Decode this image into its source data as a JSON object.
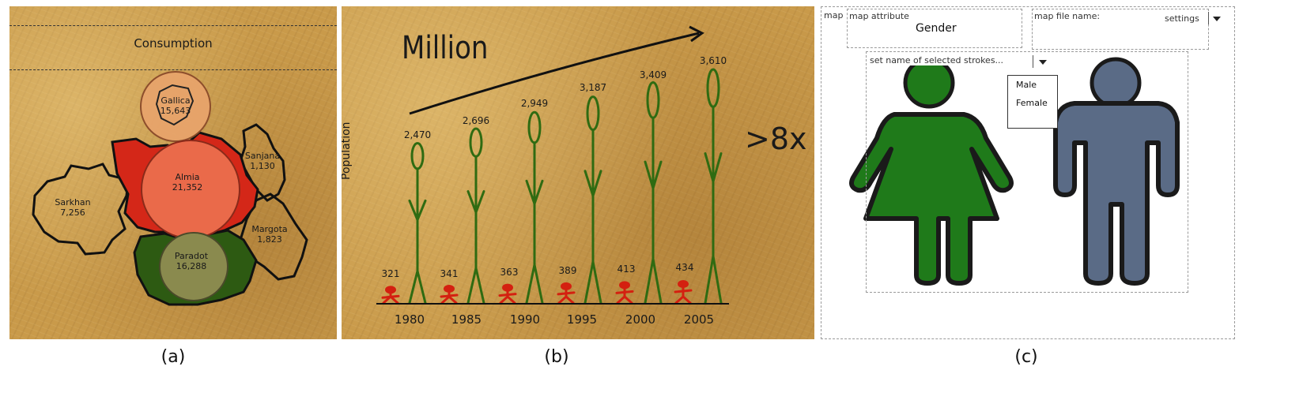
{
  "panel_a": {
    "title": "Consumption",
    "regions": [
      {
        "name": "Gallica",
        "value": "15,643"
      },
      {
        "name": "Almia",
        "value": "21,352"
      },
      {
        "name": "Paradot",
        "value": "16,288"
      },
      {
        "name": "Sarkhan",
        "value": "7,256"
      },
      {
        "name": "Sanjana",
        "value": "1,130"
      },
      {
        "name": "Margota",
        "value": "1,823"
      }
    ]
  },
  "panel_b": {
    "unit_label": "Million",
    "y_label": "Population",
    "factor_label": ">8x",
    "years": [
      "1980",
      "1985",
      "1990",
      "1995",
      "2000",
      "2005"
    ],
    "tall_values": [
      "2,470",
      "2,696",
      "2,949",
      "3,187",
      "3,409",
      "3,610"
    ],
    "short_values": [
      "321",
      "341",
      "363",
      "389",
      "413",
      "434"
    ],
    "colors": {
      "tall": "#2f6b12",
      "short": "#d42010"
    }
  },
  "panel_c": {
    "map_tag": "map",
    "attribute_tag": "map attribute",
    "attribute_value": "Gender",
    "file_tag": "map file name:",
    "settings_label": "settings",
    "strokes_placeholder": "set name of selected strokes...",
    "options": [
      "Male",
      "Female"
    ],
    "colors": {
      "female_figure": "#1f7a1a",
      "male_figure": "#5a6b86"
    }
  },
  "captions": {
    "a": "(a)",
    "b": "(b)",
    "c": "(c)"
  }
}
